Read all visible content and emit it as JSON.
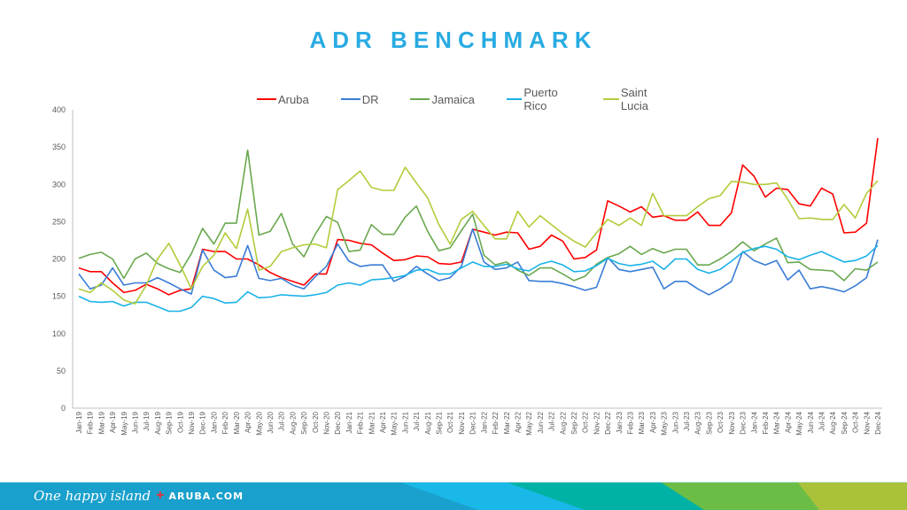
{
  "page": {
    "title": "ADR BENCHMARK"
  },
  "footer": {
    "tagline": "One happy island",
    "plus": "+",
    "site": "ARUBA.COM",
    "colors": [
      "#19a0cc",
      "#1ab8e8",
      "#00b2a5",
      "#6cbd45",
      "#a9c23a"
    ]
  },
  "chart_data": {
    "type": "line",
    "title": "ADR BENCHMARK",
    "xlabel": "",
    "ylabel": "",
    "ylim": [
      0,
      400
    ],
    "yticks": [
      "0",
      "50",
      "100",
      "150",
      "200",
      "250",
      "300",
      "350",
      "400"
    ],
    "grid": false,
    "legend": "top-center",
    "x": [
      "Jan-19",
      "Feb-19",
      "Mar-19",
      "Apr-19",
      "May-19",
      "Jun-19",
      "Jul-19",
      "Aug-19",
      "Sep-19",
      "Oct-19",
      "Nov-19",
      "Dec-19",
      "Jan-20",
      "Feb-20",
      "Mar-20",
      "Apr-20",
      "May-20",
      "Jun-20",
      "Jul-20",
      "Aug-20",
      "Sep-20",
      "Oct-20",
      "Nov-20",
      "Dec-20",
      "Jan-21",
      "Feb-21",
      "Mar-21",
      "Apr-21",
      "May-21",
      "Jun-21",
      "Jul-21",
      "Aug-21",
      "Sep-21",
      "Oct-21",
      "Nov-21",
      "Dec-21",
      "Jan-22",
      "Feb-22",
      "Mar-22",
      "Apr-22",
      "May-22",
      "Jun-22",
      "Jul-22",
      "Aug-22",
      "Sep-22",
      "Oct-22",
      "Nov-22",
      "Dec-22",
      "Jan-23",
      "Feb-23",
      "Mar-23",
      "Apr-23",
      "May-23",
      "Jun-23",
      "Jul-23",
      "Aug-23",
      "Sep-23",
      "Oct-23",
      "Nov-23",
      "Dec-23",
      "Jan-24",
      "Feb-24",
      "Mar-24",
      "Apr-24",
      "May-24",
      "Jun-24",
      "Jul-24",
      "Aug-24",
      "Sep-24",
      "Oct-24",
      "Nov-24",
      "Dec-24"
    ],
    "series": [
      {
        "name": "Aruba",
        "color": "#ff0000",
        "values": [
          188,
          183,
          183,
          168,
          155,
          158,
          166,
          160,
          152,
          158,
          160,
          213,
          210,
          210,
          200,
          200,
          192,
          182,
          175,
          170,
          165,
          180,
          180,
          226,
          225,
          221,
          219,
          208,
          198,
          199,
          204,
          203,
          194,
          193,
          196,
          240,
          236,
          232,
          236,
          235,
          213,
          217,
          232,
          224,
          200,
          202,
          212,
          278,
          271,
          263,
          270,
          256,
          258,
          252,
          252,
          263,
          245,
          245,
          262,
          326,
          311,
          283,
          295,
          293,
          274,
          271,
          295,
          287,
          235,
          236,
          248,
          362
        ]
      },
      {
        "name": "DR",
        "color": "#3a7dd6",
        "values": [
          180,
          160,
          165,
          188,
          165,
          168,
          168,
          175,
          168,
          160,
          153,
          212,
          185,
          175,
          177,
          218,
          174,
          171,
          174,
          165,
          160,
          176,
          190,
          220,
          197,
          190,
          192,
          192,
          170,
          177,
          190,
          180,
          171,
          175,
          190,
          240,
          196,
          186,
          188,
          196,
          171,
          170,
          170,
          167,
          163,
          158,
          162,
          202,
          186,
          183,
          186,
          189,
          160,
          170,
          170,
          160,
          152,
          160,
          170,
          210,
          198,
          192,
          198,
          172,
          185,
          160,
          163,
          160,
          156,
          164,
          175,
          226
        ]
      },
      {
        "name": "Jamaica",
        "color": "#69a84f",
        "values": [
          201,
          206,
          209,
          200,
          174,
          200,
          208,
          194,
          187,
          182,
          207,
          241,
          220,
          248,
          248,
          346,
          232,
          237,
          261,
          220,
          203,
          233,
          257,
          249,
          210,
          212,
          246,
          233,
          233,
          256,
          271,
          237,
          211,
          215,
          238,
          260,
          205,
          192,
          196,
          185,
          178,
          188,
          188,
          180,
          171,
          177,
          193,
          202,
          207,
          217,
          206,
          214,
          208,
          213,
          213,
          192,
          192,
          200,
          210,
          223,
          211,
          220,
          228,
          195,
          196,
          186,
          185,
          184,
          171,
          187,
          185,
          196
        ]
      },
      {
        "name": "Puerto Rico",
        "color": "#1ab2e8",
        "values": [
          150,
          143,
          142,
          143,
          137,
          142,
          142,
          136,
          130,
          130,
          135,
          150,
          147,
          141,
          142,
          156,
          148,
          149,
          152,
          151,
          150,
          152,
          155,
          165,
          168,
          165,
          172,
          173,
          175,
          178,
          185,
          186,
          180,
          180,
          188,
          196,
          190,
          190,
          193,
          187,
          184,
          193,
          197,
          192,
          183,
          184,
          191,
          201,
          194,
          191,
          193,
          197,
          186,
          200,
          200,
          186,
          181,
          186,
          197,
          209,
          214,
          217,
          213,
          203,
          199,
          205,
          210,
          203,
          196,
          198,
          204,
          218
        ]
      },
      {
        "name": "Saint Lucia",
        "color": "#b2cc3a",
        "values": [
          160,
          155,
          168,
          158,
          145,
          140,
          165,
          200,
          221,
          192,
          160,
          190,
          205,
          235,
          214,
          267,
          185,
          190,
          210,
          215,
          219,
          220,
          215,
          293,
          305,
          318,
          296,
          292,
          292,
          323,
          302,
          282,
          246,
          220,
          253,
          264,
          245,
          227,
          227,
          264,
          243,
          258,
          246,
          234,
          224,
          216,
          235,
          253,
          245,
          255,
          245,
          288,
          258,
          258,
          258,
          270,
          281,
          285,
          304,
          303,
          300,
          300,
          302,
          280,
          254,
          255,
          253,
          253,
          273,
          255,
          288,
          305
        ]
      }
    ]
  }
}
